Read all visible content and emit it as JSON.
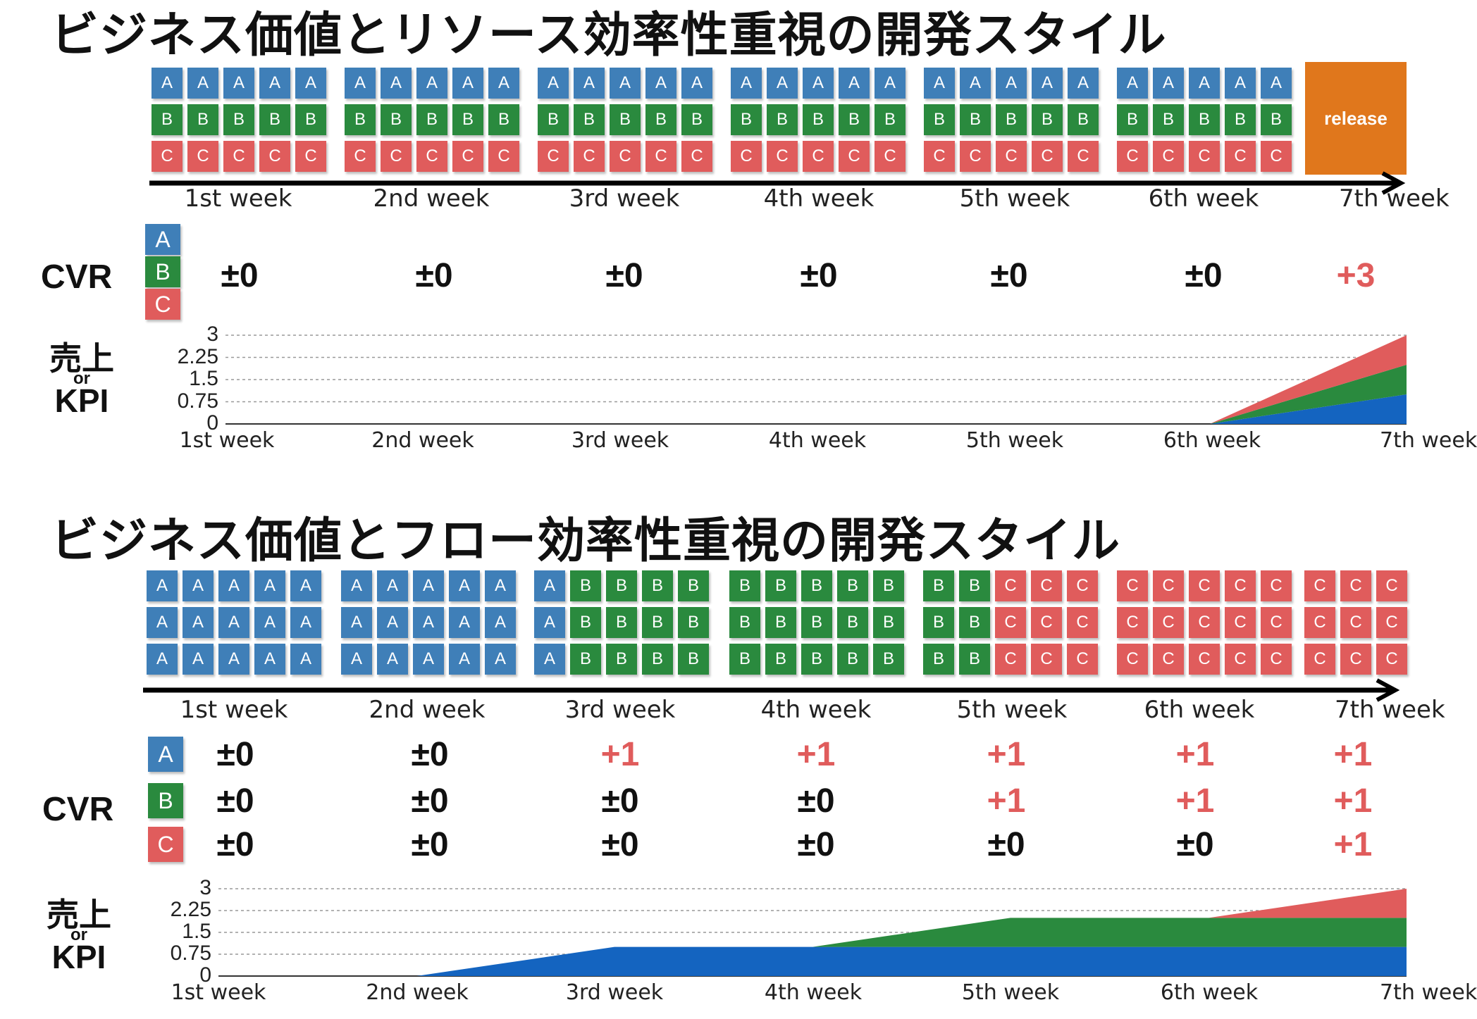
{
  "colors": {
    "A": "#3f7fb8",
    "B": "#2a8a3e",
    "C": "#e05c5c",
    "release": "#e0771c",
    "positive": "#e05c5c",
    "neutral": "#111111"
  },
  "section1": {
    "title": "ビジネス価値とリソース効率性重視の開発スタイル",
    "release_label": "release",
    "weeks": [
      "1st week",
      "2nd week",
      "3rd week",
      "4th week",
      "5th week",
      "6th week",
      "7th week"
    ],
    "grid_rows": [
      [
        "A",
        "A",
        "A",
        "A",
        "A"
      ],
      [
        "B",
        "B",
        "B",
        "B",
        "B"
      ],
      [
        "C",
        "C",
        "C",
        "C",
        "C"
      ]
    ],
    "cvr": {
      "label": "CVR",
      "legend": [
        "A",
        "B",
        "C"
      ],
      "values": [
        "±0",
        "±0",
        "±0",
        "±0",
        "±0",
        "±0",
        "+3"
      ]
    },
    "kpi": {
      "label_top": "売上",
      "label_mid": "or",
      "label_bottom": "KPI",
      "yticks": [
        "3",
        "2.25",
        "1.5",
        "0.75",
        "0"
      ]
    }
  },
  "section2": {
    "title": "ビジネス価値とフロー効率性重視の開発スタイル",
    "weeks": [
      "1st week",
      "2nd week",
      "3rd week",
      "4th week",
      "5th week",
      "6th week",
      "7th week"
    ],
    "week_blocks": [
      [
        [
          "A",
          "A",
          "A",
          "A",
          "A"
        ],
        [
          "A",
          "A",
          "A",
          "A",
          "A"
        ],
        [
          "A",
          "A",
          "A",
          "A",
          "A"
        ]
      ],
      [
        [
          "A",
          "A",
          "A",
          "A",
          "A"
        ],
        [
          "A",
          "A",
          "A",
          "A",
          "A"
        ],
        [
          "A",
          "A",
          "A",
          "A",
          "A"
        ]
      ],
      [
        [
          "A",
          "B",
          "B",
          "B",
          "B"
        ],
        [
          "A",
          "B",
          "B",
          "B",
          "B"
        ],
        [
          "A",
          "B",
          "B",
          "B",
          "B"
        ]
      ],
      [
        [
          "B",
          "B",
          "B",
          "B",
          "B"
        ],
        [
          "B",
          "B",
          "B",
          "B",
          "B"
        ],
        [
          "B",
          "B",
          "B",
          "B",
          "B"
        ]
      ],
      [
        [
          "B",
          "B",
          "C",
          "C",
          "C"
        ],
        [
          "B",
          "B",
          "C",
          "C",
          "C"
        ],
        [
          "B",
          "B",
          "C",
          "C",
          "C"
        ]
      ],
      [
        [
          "C",
          "C",
          "C",
          "C",
          "C"
        ],
        [
          "C",
          "C",
          "C",
          "C",
          "C"
        ],
        [
          "C",
          "C",
          "C",
          "C",
          "C"
        ]
      ],
      [
        [
          "C",
          "C",
          "C"
        ],
        [
          "C",
          "C",
          "C"
        ],
        [
          "C",
          "C",
          "C"
        ]
      ]
    ],
    "cvr": {
      "label": "CVR",
      "rows": [
        {
          "key": "A",
          "values": [
            "±0",
            "±0",
            "+1",
            "+1",
            "+1",
            "+1",
            "+1"
          ]
        },
        {
          "key": "B",
          "values": [
            "±0",
            "±0",
            "±0",
            "±0",
            "+1",
            "+1",
            "+1"
          ]
        },
        {
          "key": "C",
          "values": [
            "±0",
            "±0",
            "±0",
            "±0",
            "±0",
            "±0",
            "+1"
          ]
        }
      ]
    },
    "kpi": {
      "label_top": "売上",
      "label_mid": "or",
      "label_bottom": "KPI",
      "yticks": [
        "3",
        "2.25",
        "1.5",
        "0.75",
        "0"
      ]
    }
  },
  "chart_data": [
    {
      "type": "area",
      "stacked": true,
      "x": [
        "1st week",
        "2nd week",
        "3rd week",
        "4th week",
        "5th week",
        "6th week",
        "7th week"
      ],
      "ylim": [
        0,
        3
      ],
      "yticks": [
        0,
        0.75,
        1.5,
        2.25,
        3
      ],
      "grid": true,
      "series": [
        {
          "name": "A",
          "values": [
            0,
            0,
            0,
            0,
            0,
            0,
            1
          ]
        },
        {
          "name": "B",
          "values": [
            0,
            0,
            0,
            0,
            0,
            0,
            1
          ]
        },
        {
          "name": "C",
          "values": [
            0,
            0,
            0,
            0,
            0,
            0,
            1
          ]
        }
      ]
    },
    {
      "type": "area",
      "stacked": true,
      "x": [
        "1st week",
        "2nd week",
        "3rd week",
        "4th week",
        "5th week",
        "6th week",
        "7th week"
      ],
      "ylim": [
        0,
        3
      ],
      "yticks": [
        0,
        0.75,
        1.5,
        2.25,
        3
      ],
      "grid": true,
      "series": [
        {
          "name": "A",
          "values": [
            0,
            0,
            1,
            1,
            1,
            1,
            1
          ]
        },
        {
          "name": "B",
          "values": [
            0,
            0,
            0,
            0,
            1,
            1,
            1
          ]
        },
        {
          "name": "C",
          "values": [
            0,
            0,
            0,
            0,
            0,
            0,
            1
          ]
        }
      ]
    }
  ]
}
